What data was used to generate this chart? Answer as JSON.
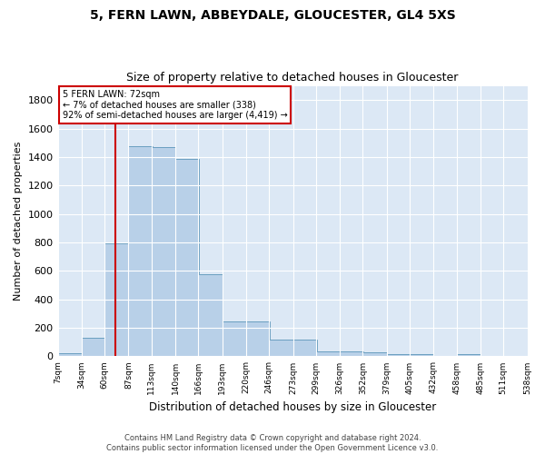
{
  "title1": "5, FERN LAWN, ABBEYDALE, GLOUCESTER, GL4 5XS",
  "title2": "Size of property relative to detached houses in Gloucester",
  "xlabel": "Distribution of detached houses by size in Gloucester",
  "ylabel": "Number of detached properties",
  "footer1": "Contains HM Land Registry data © Crown copyright and database right 2024.",
  "footer2": "Contains public sector information licensed under the Open Government Licence v3.0.",
  "annotation_title": "5 FERN LAWN: 72sqm",
  "annotation_line1": "← 7% of detached houses are smaller (338)",
  "annotation_line2": "92% of semi-detached houses are larger (4,419) →",
  "property_sqm": 72,
  "bar_left_edges": [
    7,
    34,
    60,
    87,
    113,
    140,
    166,
    193,
    220,
    246,
    273,
    299,
    326,
    352,
    379,
    405,
    432,
    458,
    485,
    511
  ],
  "bar_heights": [
    20,
    133,
    793,
    1476,
    1469,
    1385,
    575,
    248,
    243,
    118,
    118,
    35,
    35,
    27,
    14,
    14,
    5,
    14,
    5,
    5
  ],
  "bin_width": 27,
  "bar_color": "#b8d0e8",
  "bar_edge_color": "#6a9fc0",
  "vline_color": "#cc0000",
  "vline_x": 72,
  "fig_bg_color": "#ffffff",
  "plot_bg_color": "#dce8f5",
  "annotation_box_color": "#ffffff",
  "annotation_box_edge": "#cc0000",
  "ylim": [
    0,
    1900
  ],
  "yticks": [
    0,
    200,
    400,
    600,
    800,
    1000,
    1200,
    1400,
    1600,
    1800
  ],
  "tick_labels": [
    "7sqm",
    "34sqm",
    "60sqm",
    "87sqm",
    "113sqm",
    "140sqm",
    "166sqm",
    "193sqm",
    "220sqm",
    "246sqm",
    "273sqm",
    "299sqm",
    "326sqm",
    "352sqm",
    "379sqm",
    "405sqm",
    "432sqm",
    "458sqm",
    "485sqm",
    "511sqm",
    "538sqm"
  ]
}
